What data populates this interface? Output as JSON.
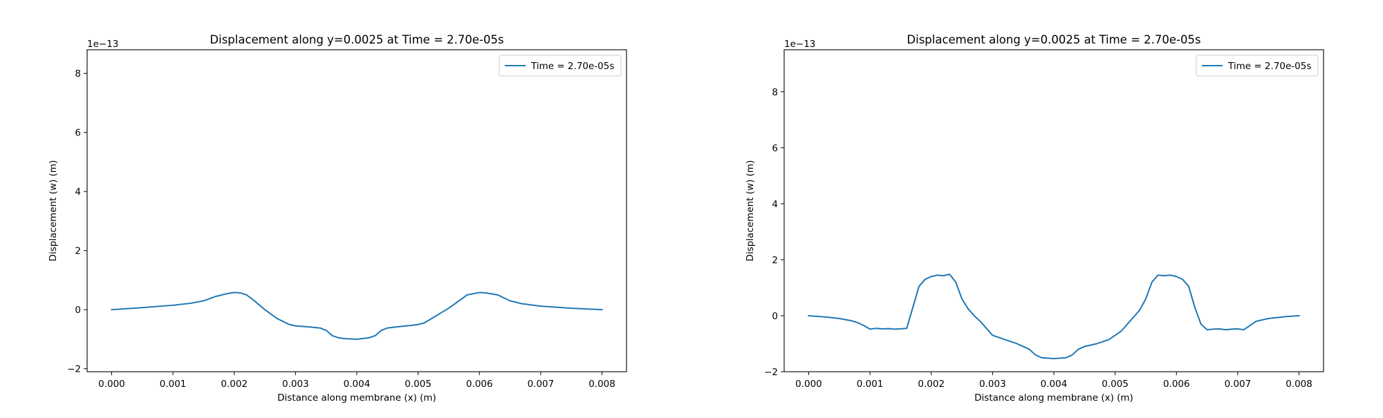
{
  "figure": {
    "background": "#ffffff"
  },
  "chart_data": [
    {
      "type": "line",
      "title": "Displacement along y=0.0025 at Time = 2.70e-05s",
      "xlabel": "Distance along membrane (x) (m)",
      "ylabel": "Displacement (w) (m)",
      "y_offset_label": "1e−13",
      "xlim": [
        -0.0004,
        0.0084
      ],
      "ylim": [
        -2.1,
        8.8
      ],
      "xticks": [
        0.0,
        0.001,
        0.002,
        0.003,
        0.004,
        0.005,
        0.006,
        0.007,
        0.008
      ],
      "xtick_labels": [
        "0.000",
        "0.001",
        "0.002",
        "0.003",
        "0.004",
        "0.005",
        "0.006",
        "0.007",
        "0.008"
      ],
      "yticks": [
        -2,
        0,
        2,
        4,
        6,
        8
      ],
      "ytick_labels": [
        "−2",
        "0",
        "2",
        "4",
        "6",
        "8"
      ],
      "legend_position": "upper right",
      "grid": false,
      "series": [
        {
          "name": "Time = 2.70e-05s",
          "color": "#1f77b4",
          "x": [
            0.0,
            0.0005,
            0.001,
            0.0013,
            0.0015,
            0.0017,
            0.0019,
            0.002,
            0.0021,
            0.0022,
            0.0023,
            0.0025,
            0.0027,
            0.0029,
            0.003,
            0.0032,
            0.0034,
            0.0035,
            0.0036,
            0.0037,
            0.0038,
            0.004,
            0.0042,
            0.0043,
            0.0044,
            0.0045,
            0.0047,
            0.0049,
            0.005,
            0.0051,
            0.0053,
            0.0055,
            0.0057,
            0.0058,
            0.006,
            0.0061,
            0.0063,
            0.0065,
            0.0067,
            0.007,
            0.0075,
            0.008
          ],
          "y": [
            0.0,
            0.07,
            0.15,
            0.22,
            0.3,
            0.45,
            0.55,
            0.58,
            0.57,
            0.5,
            0.35,
            0.0,
            -0.3,
            -0.5,
            -0.55,
            -0.58,
            -0.62,
            -0.7,
            -0.88,
            -0.95,
            -0.98,
            -1.0,
            -0.95,
            -0.88,
            -0.7,
            -0.62,
            -0.57,
            -0.53,
            -0.5,
            -0.45,
            -0.2,
            0.05,
            0.35,
            0.5,
            0.58,
            0.57,
            0.5,
            0.3,
            0.2,
            0.12,
            0.05,
            0.0
          ]
        }
      ]
    },
    {
      "type": "line",
      "title": "Displacement along y=0.0025 at Time = 2.70e-05s",
      "xlabel": "Distance along membrane (x) (m)",
      "ylabel": "Displacement (w) (m)",
      "y_offset_label": "1e−13",
      "xlim": [
        -0.0004,
        0.0084
      ],
      "ylim": [
        -2.0,
        9.5
      ],
      "xticks": [
        0.0,
        0.001,
        0.002,
        0.003,
        0.004,
        0.005,
        0.006,
        0.007,
        0.008
      ],
      "xtick_labels": [
        "0.000",
        "0.001",
        "0.002",
        "0.003",
        "0.004",
        "0.005",
        "0.006",
        "0.007",
        "0.008"
      ],
      "yticks": [
        -2,
        0,
        2,
        4,
        6,
        8
      ],
      "ytick_labels": [
        "−2",
        "0",
        "2",
        "4",
        "6",
        "8"
      ],
      "legend_position": "upper right",
      "grid": false,
      "series": [
        {
          "name": "Time = 2.70e-05s",
          "color": "#1f77b4",
          "x": [
            0.0,
            0.0003,
            0.0005,
            0.0007,
            0.0008,
            0.0009,
            0.001,
            0.0011,
            0.0012,
            0.0013,
            0.0014,
            0.0015,
            0.0016,
            0.0017,
            0.0018,
            0.0019,
            0.002,
            0.0021,
            0.0022,
            0.0023,
            0.0024,
            0.0025,
            0.0026,
            0.0027,
            0.0028,
            0.0029,
            0.003,
            0.0032,
            0.0034,
            0.0035,
            0.0036,
            0.0037,
            0.0038,
            0.004,
            0.0042,
            0.0043,
            0.0044,
            0.0045,
            0.0047,
            0.0049,
            0.005,
            0.0051,
            0.0052,
            0.0053,
            0.0054,
            0.0055,
            0.0056,
            0.0057,
            0.0058,
            0.0059,
            0.006,
            0.0061,
            0.0062,
            0.0063,
            0.0064,
            0.0065,
            0.0066,
            0.0067,
            0.0068,
            0.0069,
            0.007,
            0.0071,
            0.0072,
            0.0073,
            0.0075,
            0.0078,
            0.008
          ],
          "y": [
            0.0,
            -0.05,
            -0.1,
            -0.18,
            -0.25,
            -0.35,
            -0.48,
            -0.45,
            -0.47,
            -0.46,
            -0.48,
            -0.47,
            -0.45,
            0.3,
            1.05,
            1.3,
            1.4,
            1.45,
            1.43,
            1.48,
            1.2,
            0.6,
            0.25,
            0.0,
            -0.2,
            -0.45,
            -0.7,
            -0.85,
            -1.0,
            -1.1,
            -1.2,
            -1.4,
            -1.5,
            -1.53,
            -1.5,
            -1.4,
            -1.2,
            -1.1,
            -1.0,
            -0.85,
            -0.7,
            -0.55,
            -0.3,
            -0.05,
            0.2,
            0.6,
            1.2,
            1.45,
            1.43,
            1.45,
            1.4,
            1.3,
            1.05,
            0.3,
            -0.3,
            -0.5,
            -0.48,
            -0.47,
            -0.5,
            -0.48,
            -0.47,
            -0.5,
            -0.35,
            -0.2,
            -0.1,
            -0.03,
            0.0
          ]
        }
      ]
    }
  ]
}
